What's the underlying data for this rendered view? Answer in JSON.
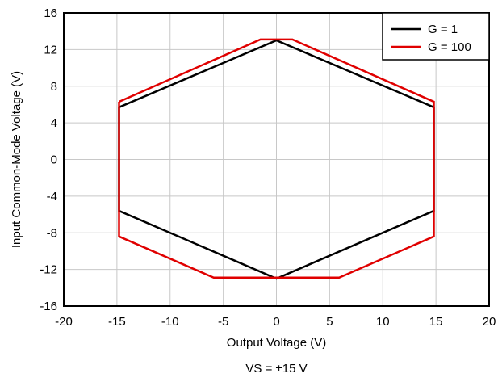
{
  "chart_data": {
    "type": "line",
    "caption": "VS = ±15 V",
    "xlabel": "Output Voltage (V)",
    "ylabel": "Input Common-Mode Voltage (V)",
    "xlim": [
      -20,
      20
    ],
    "ylim": [
      -16,
      16
    ],
    "xticks": [
      -20,
      -15,
      -10,
      -5,
      0,
      5,
      10,
      15,
      20
    ],
    "yticks": [
      -16,
      -12,
      -8,
      -4,
      0,
      4,
      8,
      12,
      16
    ],
    "xtick_labels": [
      "-20",
      "-15",
      "-10",
      "-5",
      "0",
      "5",
      "10",
      "15",
      "20"
    ],
    "ytick_labels": [
      "-16",
      "-12",
      "-8",
      "-4",
      "0",
      "4",
      "8",
      "12",
      "16"
    ],
    "grid": true,
    "legend_position": "top-right",
    "series": [
      {
        "name": "G = 1",
        "color": "#000000",
        "x": [
          -14.8,
          0,
          14.8,
          14.8,
          0,
          -14.8,
          -14.8
        ],
        "y": [
          5.7,
          13.0,
          5.7,
          -5.6,
          -13.0,
          -5.6,
          5.7
        ]
      },
      {
        "name": "G = 100",
        "color": "#e00000",
        "x": [
          -14.8,
          -1.5,
          1.5,
          14.8,
          14.8,
          5.9,
          -5.9,
          -14.8,
          -14.8
        ],
        "y": [
          6.3,
          13.1,
          13.1,
          6.3,
          -8.4,
          -12.9,
          -12.9,
          -8.4,
          6.3
        ]
      }
    ]
  }
}
